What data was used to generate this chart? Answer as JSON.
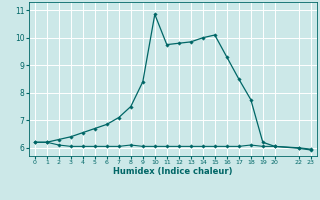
{
  "xlabel": "Humidex (Indice chaleur)",
  "bg_color": "#cce8e8",
  "grid_color": "#ffffff",
  "line_color": "#006666",
  "x_ticks": [
    0,
    1,
    2,
    3,
    4,
    5,
    6,
    7,
    8,
    9,
    10,
    11,
    12,
    13,
    14,
    15,
    16,
    17,
    18,
    19,
    20,
    22,
    23
  ],
  "x_labels": [
    "0",
    "1",
    "2",
    "3",
    "4",
    "5",
    "6",
    "7",
    "8",
    "9",
    "10",
    "11",
    "12",
    "13",
    "14",
    "15",
    "16",
    "17",
    "18",
    "19",
    "20",
    "22",
    "23"
  ],
  "ylim": [
    5.7,
    11.3
  ],
  "xlim": [
    -0.5,
    23.5
  ],
  "y_ticks": [
    6,
    7,
    8,
    9,
    10,
    11
  ],
  "y_labels": [
    "6",
    "7",
    "8",
    "9",
    "10",
    "11"
  ],
  "series1_x": [
    0,
    1,
    2,
    3,
    4,
    5,
    6,
    7,
    8,
    9,
    10,
    11,
    12,
    13,
    14,
    15,
    16,
    17,
    18,
    19,
    20,
    22,
    23
  ],
  "series1_y": [
    6.2,
    6.2,
    6.1,
    6.05,
    6.05,
    6.05,
    6.05,
    6.05,
    6.1,
    6.05,
    6.05,
    6.05,
    6.05,
    6.05,
    6.05,
    6.05,
    6.05,
    6.05,
    6.1,
    6.05,
    6.05,
    6.0,
    5.95
  ],
  "series2_x": [
    0,
    1,
    2,
    3,
    4,
    5,
    6,
    7,
    8,
    9,
    10,
    11,
    12,
    13,
    14,
    15,
    16,
    17,
    18,
    19,
    20,
    22,
    23
  ],
  "series2_y": [
    6.2,
    6.2,
    6.3,
    6.4,
    6.55,
    6.7,
    6.85,
    7.1,
    7.5,
    8.4,
    10.85,
    9.75,
    9.8,
    9.85,
    10.0,
    10.1,
    9.3,
    8.5,
    7.75,
    6.2,
    6.05,
    5.98,
    5.92
  ]
}
